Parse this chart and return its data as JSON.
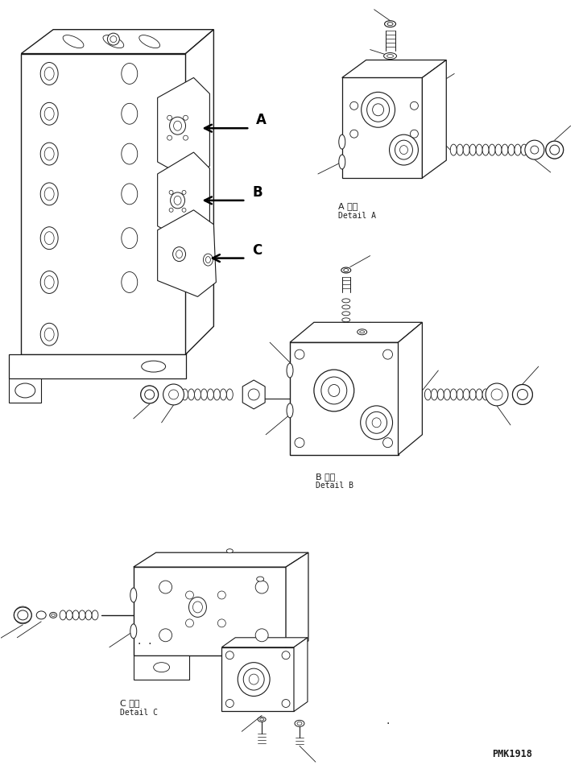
{
  "background_color": "#ffffff",
  "line_color": "#1a1a1a",
  "fig_width": 7.29,
  "fig_height": 9.5,
  "dpi": 100,
  "labels": {
    "detail_a_jp": "A 詳細",
    "detail_a_en": "Detail A",
    "detail_b_jp": "B 詳細",
    "detail_b_en": "Detail B",
    "detail_c_jp": "C 詳細",
    "detail_c_en": "Detail C",
    "part_number": "PMK1918"
  }
}
